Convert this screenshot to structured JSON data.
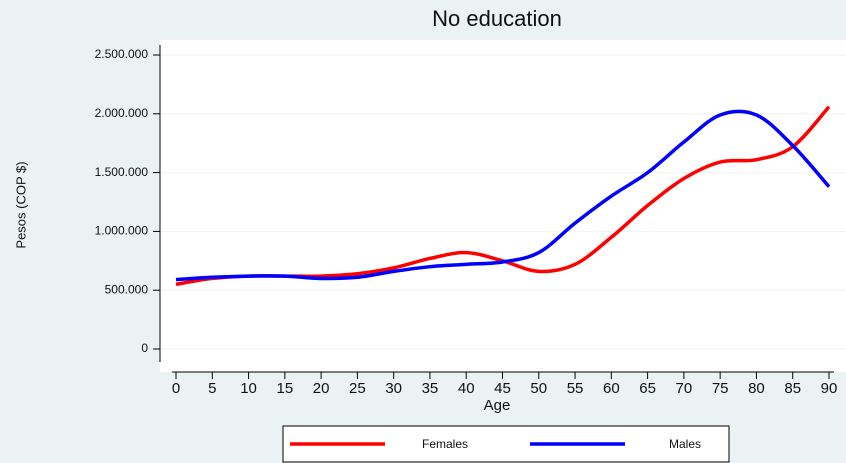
{
  "chart_data": {
    "type": "line",
    "title": "No education",
    "x_label": "Age",
    "y_label": "Pesos (COP $)",
    "x": [
      0,
      5,
      10,
      15,
      20,
      25,
      30,
      35,
      40,
      45,
      50,
      55,
      60,
      65,
      70,
      75,
      80,
      85,
      90
    ],
    "xlim": [
      0,
      90
    ],
    "xticks": [
      0,
      5,
      10,
      15,
      20,
      25,
      30,
      35,
      40,
      45,
      50,
      55,
      60,
      65,
      70,
      75,
      80,
      85,
      90
    ],
    "ylim": [
      0,
      2500000
    ],
    "yticks": [
      {
        "value": 0,
        "label": "0"
      },
      {
        "value": 500000,
        "label": "500.000"
      },
      {
        "value": 1000000,
        "label": "1.000.000"
      },
      {
        "value": 1500000,
        "label": "1.500.000"
      },
      {
        "value": 2000000,
        "label": "2.000.000"
      },
      {
        "value": 2500000,
        "label": "2.500.000"
      }
    ],
    "grid": true,
    "legend": "bottom",
    "series": [
      {
        "name": "Females",
        "color": "#ff0000",
        "values": [
          550000,
          600000,
          620000,
          620000,
          620000,
          640000,
          690000,
          770000,
          820000,
          750000,
          660000,
          720000,
          950000,
          1220000,
          1450000,
          1590000,
          1610000,
          1720000,
          2060000
        ]
      },
      {
        "name": "Males",
        "color": "#0000ff",
        "values": [
          590000,
          610000,
          620000,
          620000,
          600000,
          610000,
          660000,
          700000,
          720000,
          740000,
          820000,
          1070000,
          1300000,
          1500000,
          1760000,
          1990000,
          1990000,
          1730000,
          1380000
        ]
      }
    ]
  }
}
